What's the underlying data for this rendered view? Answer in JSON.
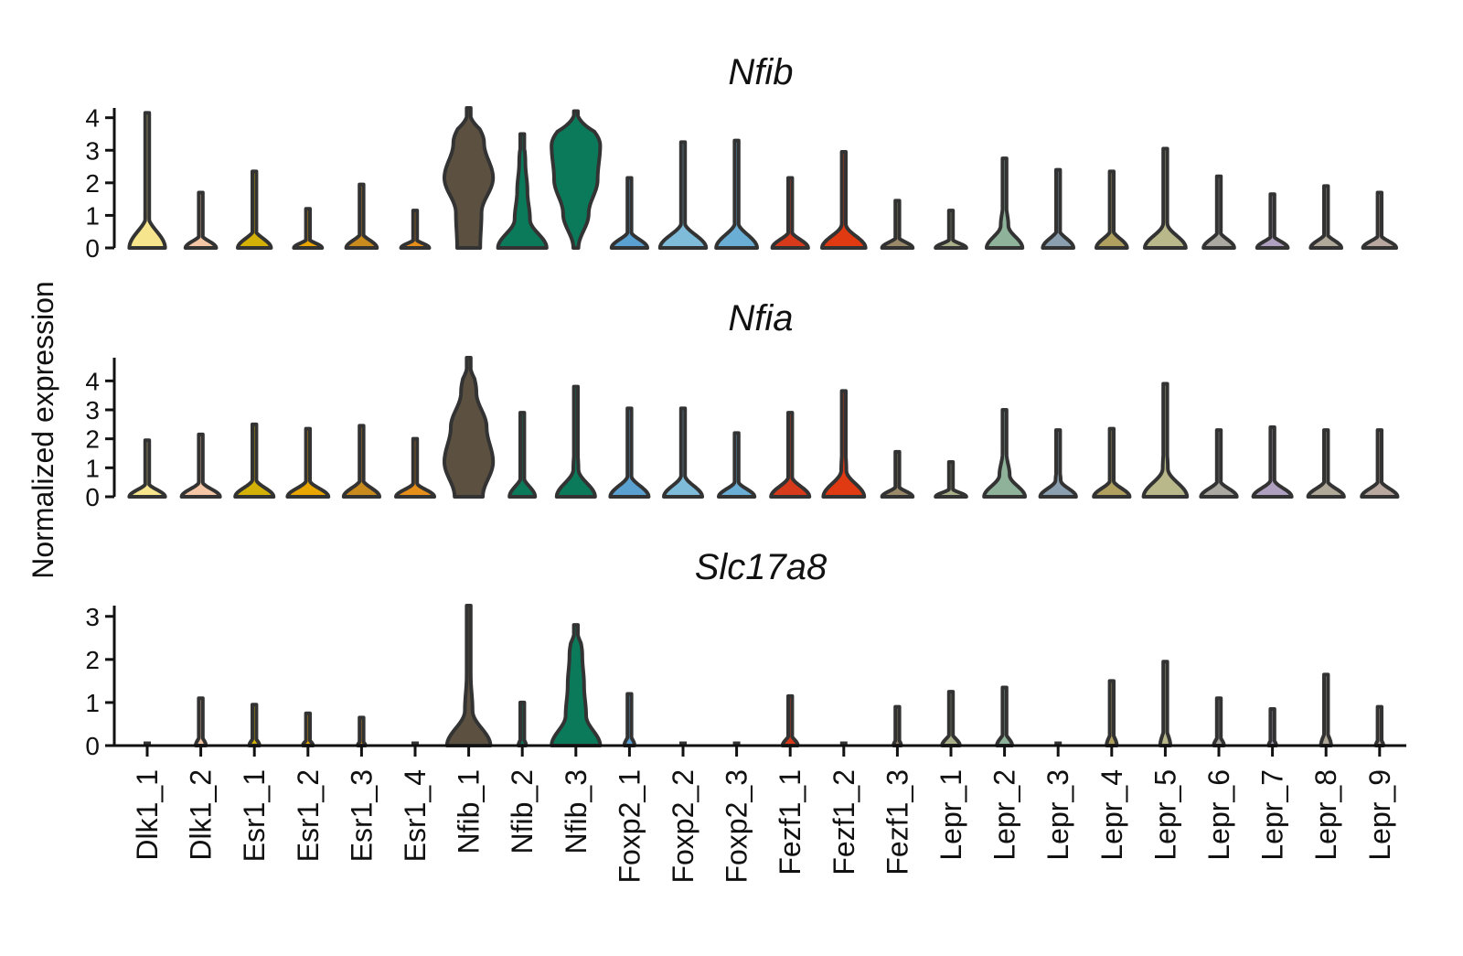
{
  "chart_data": {
    "type": "violin",
    "ylabel": "Normalized expression",
    "categories": [
      "Dlk1_1",
      "Dlk1_2",
      "Esr1_1",
      "Esr1_2",
      "Esr1_3",
      "Esr1_4",
      "Nfib_1",
      "Nfib_2",
      "Nfib_3",
      "Foxp2_1",
      "Foxp2_2",
      "Foxp2_3",
      "Fezf1_1",
      "Fezf1_2",
      "Fezf1_3",
      "Lepr_1",
      "Lepr_2",
      "Lepr_3",
      "Lepr_4",
      "Lepr_5",
      "Lepr_6",
      "Lepr_7",
      "Lepr_8",
      "Lepr_9"
    ],
    "category_colors": [
      "#f6e58d",
      "#f5c6a5",
      "#d4b106",
      "#e9a600",
      "#c98a1e",
      "#e58e1a",
      "#5c5140",
      "#0a7a5a",
      "#0a7a5a",
      "#5aa0d0",
      "#7fbcd9",
      "#6aaed6",
      "#d63a1a",
      "#e03a12",
      "#9a8a6a",
      "#aab08a",
      "#8fb39a",
      "#8aa0b0",
      "#b0a060",
      "#b8b88a",
      "#aaa8a0",
      "#b0a0c0",
      "#b0a898",
      "#b8a8a0"
    ],
    "panels": [
      {
        "title": "Nfib",
        "ylim": [
          0,
          4.3
        ],
        "yticks": [
          0,
          1,
          2,
          3,
          4
        ],
        "max": [
          4.15,
          1.7,
          2.35,
          1.2,
          1.95,
          1.15,
          4.3,
          3.5,
          4.2,
          2.15,
          3.25,
          3.3,
          2.15,
          2.95,
          1.45,
          1.15,
          2.75,
          2.4,
          2.35,
          3.05,
          2.2,
          1.65,
          1.9,
          1.7
        ],
        "density": [
          [
            0.7,
            0.02,
            0.01,
            0.01,
            0.005
          ],
          [
            0.6,
            0.02,
            0.01,
            0,
            0
          ],
          [
            0.65,
            0.02,
            0.01,
            0.005,
            0
          ],
          [
            0.55,
            0.02,
            0.01,
            0,
            0
          ],
          [
            0.6,
            0.02,
            0.01,
            0,
            0
          ],
          [
            0.55,
            0.02,
            0.01,
            0,
            0
          ],
          [
            0.45,
            0.5,
            0.95,
            0.6,
            0.1
          ],
          [
            0.95,
            0.3,
            0.2,
            0.12,
            0.05
          ],
          [
            0.1,
            0.5,
            0.85,
            0.95,
            0.3
          ],
          [
            0.7,
            0.04,
            0.02,
            0.01,
            0
          ],
          [
            0.9,
            0.05,
            0.03,
            0.02,
            0.01
          ],
          [
            0.8,
            0.04,
            0.02,
            0.01,
            0
          ],
          [
            0.7,
            0.04,
            0.02,
            0.01,
            0
          ],
          [
            0.85,
            0.08,
            0.05,
            0.03,
            0
          ],
          [
            0.6,
            0.02,
            0.01,
            0,
            0
          ],
          [
            0.6,
            0.04,
            0.01,
            0,
            0
          ],
          [
            0.7,
            0.15,
            0.06,
            0.02,
            0
          ],
          [
            0.6,
            0.02,
            0.01,
            0,
            0
          ],
          [
            0.6,
            0.03,
            0.01,
            0,
            0
          ],
          [
            0.8,
            0.08,
            0.03,
            0.01,
            0
          ],
          [
            0.6,
            0.02,
            0.01,
            0,
            0
          ],
          [
            0.6,
            0.02,
            0.01,
            0,
            0
          ],
          [
            0.6,
            0.02,
            0.01,
            0,
            0
          ],
          [
            0.65,
            0.03,
            0.01,
            0,
            0
          ]
        ]
      },
      {
        "title": "Nfia",
        "ylim": [
          0,
          4.8
        ],
        "yticks": [
          0,
          1,
          2,
          3,
          4
        ],
        "max": [
          1.95,
          2.15,
          2.5,
          2.35,
          2.45,
          2.0,
          4.8,
          2.9,
          3.8,
          3.05,
          3.05,
          2.2,
          2.9,
          3.65,
          1.55,
          1.2,
          3.0,
          2.3,
          2.35,
          3.9,
          2.3,
          2.4,
          2.3,
          2.3
        ],
        "density": [
          [
            0.7,
            0.05,
            0.02,
            0,
            0
          ],
          [
            0.75,
            0.06,
            0.02,
            0,
            0
          ],
          [
            0.75,
            0.06,
            0.02,
            0.01,
            0
          ],
          [
            0.8,
            0.06,
            0.03,
            0.01,
            0
          ],
          [
            0.7,
            0.05,
            0.02,
            0.01,
            0
          ],
          [
            0.75,
            0.06,
            0.02,
            0,
            0
          ],
          [
            0.55,
            0.95,
            0.7,
            0.3,
            0.08
          ],
          [
            0.5,
            0.04,
            0.02,
            0.01,
            0
          ],
          [
            0.75,
            0.1,
            0.05,
            0.02,
            0.01
          ],
          [
            0.75,
            0.06,
            0.03,
            0.01,
            0
          ],
          [
            0.75,
            0.07,
            0.03,
            0.01,
            0
          ],
          [
            0.7,
            0.06,
            0.02,
            0.01,
            0
          ],
          [
            0.75,
            0.06,
            0.03,
            0.01,
            0
          ],
          [
            0.8,
            0.1,
            0.06,
            0.02,
            0.01
          ],
          [
            0.6,
            0.04,
            0.01,
            0,
            0
          ],
          [
            0.6,
            0.04,
            0.01,
            0,
            0
          ],
          [
            0.8,
            0.2,
            0.08,
            0.02,
            0
          ],
          [
            0.7,
            0.1,
            0.03,
            0.01,
            0
          ],
          [
            0.7,
            0.06,
            0.02,
            0.01,
            0
          ],
          [
            0.85,
            0.1,
            0.05,
            0.02,
            0.01
          ],
          [
            0.7,
            0.05,
            0.02,
            0,
            0
          ],
          [
            0.75,
            0.07,
            0.03,
            0.01,
            0
          ],
          [
            0.7,
            0.05,
            0.02,
            0,
            0
          ],
          [
            0.7,
            0.05,
            0.02,
            0,
            0
          ]
        ]
      },
      {
        "title": "Slc17a8",
        "ylim": [
          0,
          3.25
        ],
        "yticks": [
          0,
          1,
          2,
          3
        ],
        "max": [
          0,
          1.1,
          0.95,
          0.75,
          0.65,
          0,
          3.25,
          1.0,
          2.8,
          1.2,
          0,
          0,
          1.15,
          0,
          0.9,
          1.25,
          1.35,
          0,
          1.5,
          1.95,
          1.1,
          0.85,
          1.65,
          0.9
        ],
        "density": [
          [
            0.05,
            0,
            0,
            0,
            0
          ],
          [
            0.2,
            0.02,
            0,
            0,
            0
          ],
          [
            0.2,
            0.02,
            0,
            0,
            0
          ],
          [
            0.2,
            0.02,
            0,
            0,
            0
          ],
          [
            0.15,
            0.01,
            0,
            0,
            0
          ],
          [
            0.05,
            0,
            0,
            0,
            0
          ],
          [
            0.85,
            0.15,
            0.08,
            0.04,
            0.02
          ],
          [
            0.15,
            0.01,
            0,
            0,
            0
          ],
          [
            0.95,
            0.4,
            0.32,
            0.25,
            0.1
          ],
          [
            0.2,
            0.02,
            0,
            0,
            0
          ],
          [
            0.05,
            0,
            0,
            0,
            0
          ],
          [
            0.05,
            0,
            0,
            0,
            0
          ],
          [
            0.3,
            0.02,
            0,
            0,
            0
          ],
          [
            0.05,
            0,
            0,
            0,
            0
          ],
          [
            0.15,
            0.01,
            0,
            0,
            0
          ],
          [
            0.35,
            0.03,
            0,
            0,
            0
          ],
          [
            0.3,
            0.02,
            0,
            0,
            0
          ],
          [
            0.05,
            0,
            0,
            0,
            0
          ],
          [
            0.2,
            0.02,
            0,
            0,
            0
          ],
          [
            0.2,
            0.02,
            0,
            0,
            0
          ],
          [
            0.2,
            0.02,
            0,
            0,
            0
          ],
          [
            0.15,
            0.01,
            0,
            0,
            0
          ],
          [
            0.2,
            0.02,
            0,
            0,
            0
          ],
          [
            0.15,
            0.01,
            0,
            0,
            0
          ]
        ]
      }
    ]
  }
}
